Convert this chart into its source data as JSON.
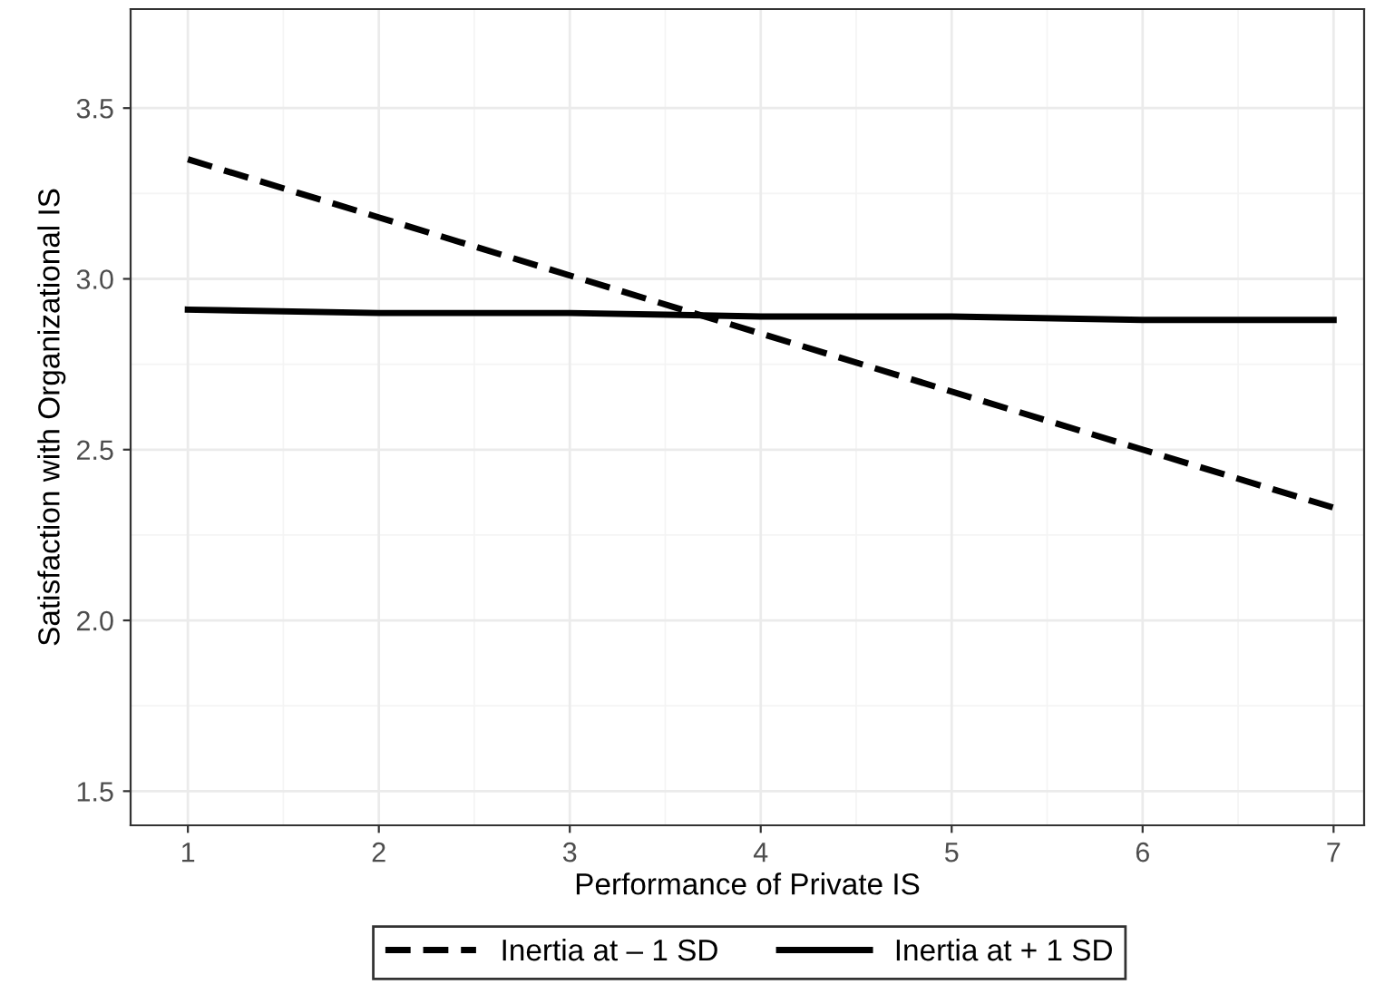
{
  "chart_data": {
    "type": "line",
    "xlabel": "Performance of Private IS",
    "ylabel": "Satisfaction with Organizational IS",
    "x": [
      1,
      2,
      3,
      4,
      5,
      6,
      7
    ],
    "series": [
      {
        "name": "Inertia at – 1 SD",
        "color": "#000000",
        "line_style": "dashed",
        "values": [
          3.35,
          3.18,
          3.01,
          2.84,
          2.67,
          2.5,
          2.33
        ]
      },
      {
        "name": "Inertia at + 1 SD",
        "color": "#000000",
        "line_style": "solid",
        "values": [
          2.91,
          2.9,
          2.9,
          2.89,
          2.89,
          2.88,
          2.88
        ]
      }
    ],
    "xlim": [
      0.7,
      7.16
    ],
    "ylim": [
      1.4,
      3.79
    ],
    "xticks": [
      1,
      2,
      3,
      4,
      5,
      6,
      7
    ],
    "yticks": [
      {
        "value": 1.5,
        "label": "1.5"
      },
      {
        "value": 2.0,
        "label": "2.0"
      },
      {
        "value": 2.5,
        "label": "2.5"
      },
      {
        "value": 3.0,
        "label": "3.0"
      },
      {
        "value": 3.5,
        "label": "3.5"
      }
    ],
    "grid": true,
    "legend": "bottom",
    "marker": "none"
  }
}
